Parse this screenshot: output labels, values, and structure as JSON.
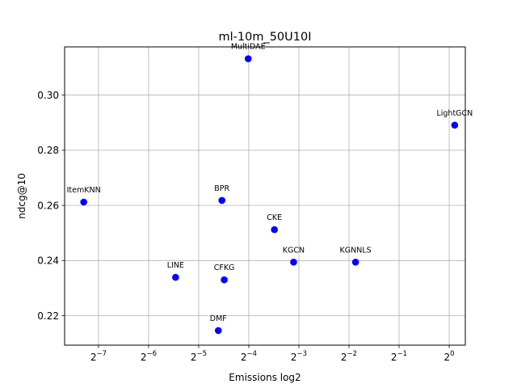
{
  "chart_data": {
    "type": "scatter",
    "title": "ml-10m_50U10I",
    "xlabel": "Emissions log2",
    "ylabel": "ndcg@10",
    "x_scale": "log2",
    "xlim": [
      0.00489,
      1.25
    ],
    "ylim": [
      0.2093,
      0.3175
    ],
    "grid": true,
    "marker_color": "#0000ff",
    "x_ticks": [
      {
        "value": 0.0078125,
        "base": "2",
        "exp": "−7"
      },
      {
        "value": 0.015625,
        "base": "2",
        "exp": "−6"
      },
      {
        "value": 0.03125,
        "base": "2",
        "exp": "−5"
      },
      {
        "value": 0.0625,
        "base": "2",
        "exp": "−4"
      },
      {
        "value": 0.125,
        "base": "2",
        "exp": "−3"
      },
      {
        "value": 0.25,
        "base": "2",
        "exp": "−2"
      },
      {
        "value": 0.5,
        "base": "2",
        "exp": "−1"
      },
      {
        "value": 1.0,
        "base": "2",
        "exp": "0"
      }
    ],
    "y_ticks": [
      {
        "value": 0.22,
        "label": "0.22"
      },
      {
        "value": 0.24,
        "label": "0.24"
      },
      {
        "value": 0.26,
        "label": "0.26"
      },
      {
        "value": 0.28,
        "label": "0.28"
      },
      {
        "value": 0.3,
        "label": "0.30"
      }
    ],
    "points": [
      {
        "name": "ItemKNN",
        "x": 0.00637,
        "y": 0.2612
      },
      {
        "name": "LINE",
        "x": 0.0227,
        "y": 0.2339
      },
      {
        "name": "DMF",
        "x": 0.041,
        "y": 0.2146
      },
      {
        "name": "BPR",
        "x": 0.0431,
        "y": 0.2618
      },
      {
        "name": "CFKG",
        "x": 0.0445,
        "y": 0.233
      },
      {
        "name": "MultiDAE",
        "x": 0.062,
        "y": 0.3132
      },
      {
        "name": "CKE",
        "x": 0.0891,
        "y": 0.2512
      },
      {
        "name": "KGCN",
        "x": 0.1162,
        "y": 0.2394
      },
      {
        "name": "KGNNLS",
        "x": 0.2737,
        "y": 0.2394
      },
      {
        "name": "LightGCN",
        "x": 1.0795,
        "y": 0.2891
      }
    ]
  }
}
